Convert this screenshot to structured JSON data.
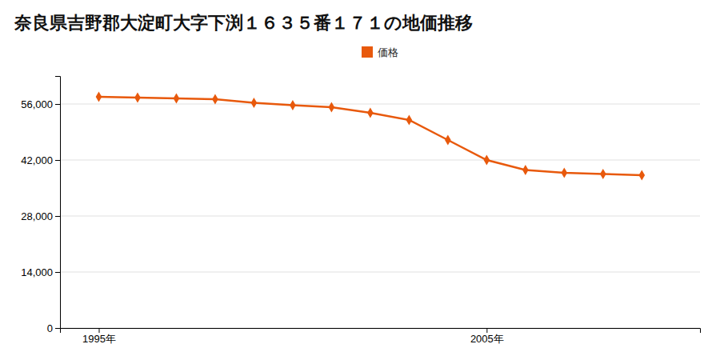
{
  "chart_data": {
    "type": "line",
    "title": "奈良県吉野郡大淀町大字下渕１６３５番１７１の地価推移",
    "x": [
      1995,
      1996,
      1997,
      1998,
      1999,
      2000,
      2001,
      2002,
      2003,
      2004,
      2005,
      2006,
      2007,
      2008,
      2009
    ],
    "series": [
      {
        "name": "価格",
        "color": "#e8590c",
        "values": [
          57800,
          57600,
          57400,
          57200,
          56300,
          55700,
          55200,
          53800,
          52000,
          47000,
          42000,
          39500,
          38800,
          38500,
          38200
        ]
      }
    ],
    "marker": "diamond",
    "xlim": [
      1994,
      2010.5
    ],
    "xticks": [
      {
        "value": 1995,
        "label": "1995年"
      },
      {
        "value": 2005,
        "label": "2005年"
      }
    ],
    "ylim": [
      0,
      63000
    ],
    "yticks": [
      0,
      {
        "value": 14000,
        "label": "14,000"
      },
      {
        "value": 28000,
        "label": "28,000"
      },
      {
        "value": 42000,
        "label": "42,000"
      },
      {
        "value": 56000,
        "label": "56,000"
      }
    ],
    "grid": true,
    "legend": "top"
  }
}
